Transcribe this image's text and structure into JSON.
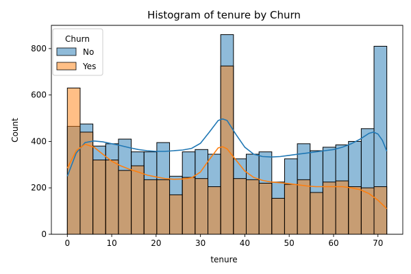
{
  "chart_data": {
    "type": "bar",
    "title": "Histogram of tenure by Churn",
    "xlabel": "tenure",
    "ylabel": "Count",
    "xlim": [
      -3.6,
      75.6
    ],
    "ylim": [
      0,
      900
    ],
    "xticks": [
      0,
      10,
      20,
      30,
      40,
      50,
      60,
      70
    ],
    "yticks": [
      0,
      200,
      400,
      600,
      800
    ],
    "legend": {
      "title": "Churn",
      "placement": "top-left"
    },
    "bin_edges": [
      0,
      2.88,
      5.76,
      8.64,
      11.52,
      14.4,
      17.28,
      20.16,
      23.04,
      25.92,
      28.8,
      31.68,
      34.56,
      37.44,
      40.32,
      43.2,
      46.08,
      48.96,
      51.84,
      54.72,
      57.6,
      60.48,
      63.36,
      66.24,
      69.12,
      72
    ],
    "series": [
      {
        "name": "No",
        "color": "#1f77b4",
        "values": [
          465,
          475,
          380,
          390,
          410,
          355,
          355,
          395,
          250,
          355,
          365,
          345,
          860,
          325,
          345,
          355,
          225,
          325,
          390,
          360,
          375,
          385,
          400,
          455,
          810
        ],
        "kde": [
          [
            0,
            250
          ],
          [
            2,
            350
          ],
          [
            4,
            395
          ],
          [
            6,
            402
          ],
          [
            8,
            398
          ],
          [
            10,
            390
          ],
          [
            12,
            382
          ],
          [
            14,
            373
          ],
          [
            16,
            365
          ],
          [
            18,
            360
          ],
          [
            20,
            357
          ],
          [
            22,
            357
          ],
          [
            24,
            360
          ],
          [
            26,
            363
          ],
          [
            28,
            370
          ],
          [
            30,
            392
          ],
          [
            32,
            440
          ],
          [
            34,
            490
          ],
          [
            35,
            497
          ],
          [
            36,
            490
          ],
          [
            38,
            430
          ],
          [
            40,
            375
          ],
          [
            42,
            345
          ],
          [
            44,
            335
          ],
          [
            46,
            333
          ],
          [
            48,
            335
          ],
          [
            50,
            340
          ],
          [
            52,
            345
          ],
          [
            54,
            350
          ],
          [
            56,
            355
          ],
          [
            58,
            360
          ],
          [
            60,
            365
          ],
          [
            62,
            375
          ],
          [
            64,
            390
          ],
          [
            66,
            410
          ],
          [
            68,
            435
          ],
          [
            69,
            440
          ],
          [
            70,
            432
          ],
          [
            71,
            405
          ],
          [
            72,
            358
          ]
        ]
      },
      {
        "name": "Yes",
        "color": "#ff7f0e",
        "values": [
          630,
          440,
          320,
          320,
          275,
          295,
          235,
          235,
          170,
          245,
          240,
          205,
          725,
          240,
          235,
          220,
          155,
          215,
          235,
          180,
          225,
          230,
          205,
          200,
          205
        ],
        "kde": [
          [
            0,
            285
          ],
          [
            2,
            360
          ],
          [
            4,
            388
          ],
          [
            6,
            375
          ],
          [
            8,
            345
          ],
          [
            10,
            315
          ],
          [
            12,
            295
          ],
          [
            14,
            280
          ],
          [
            16,
            268
          ],
          [
            18,
            255
          ],
          [
            20,
            247
          ],
          [
            22,
            240
          ],
          [
            24,
            237
          ],
          [
            26,
            238
          ],
          [
            28,
            243
          ],
          [
            30,
            268
          ],
          [
            32,
            322
          ],
          [
            34,
            372
          ],
          [
            35,
            377
          ],
          [
            36,
            368
          ],
          [
            38,
            320
          ],
          [
            40,
            272
          ],
          [
            42,
            245
          ],
          [
            44,
            232
          ],
          [
            46,
            225
          ],
          [
            48,
            222
          ],
          [
            50,
            218
          ],
          [
            52,
            213
          ],
          [
            54,
            208
          ],
          [
            56,
            205
          ],
          [
            58,
            205
          ],
          [
            60,
            205
          ],
          [
            62,
            205
          ],
          [
            64,
            200
          ],
          [
            66,
            192
          ],
          [
            68,
            175
          ],
          [
            70,
            147
          ],
          [
            72,
            110
          ]
        ]
      }
    ]
  }
}
